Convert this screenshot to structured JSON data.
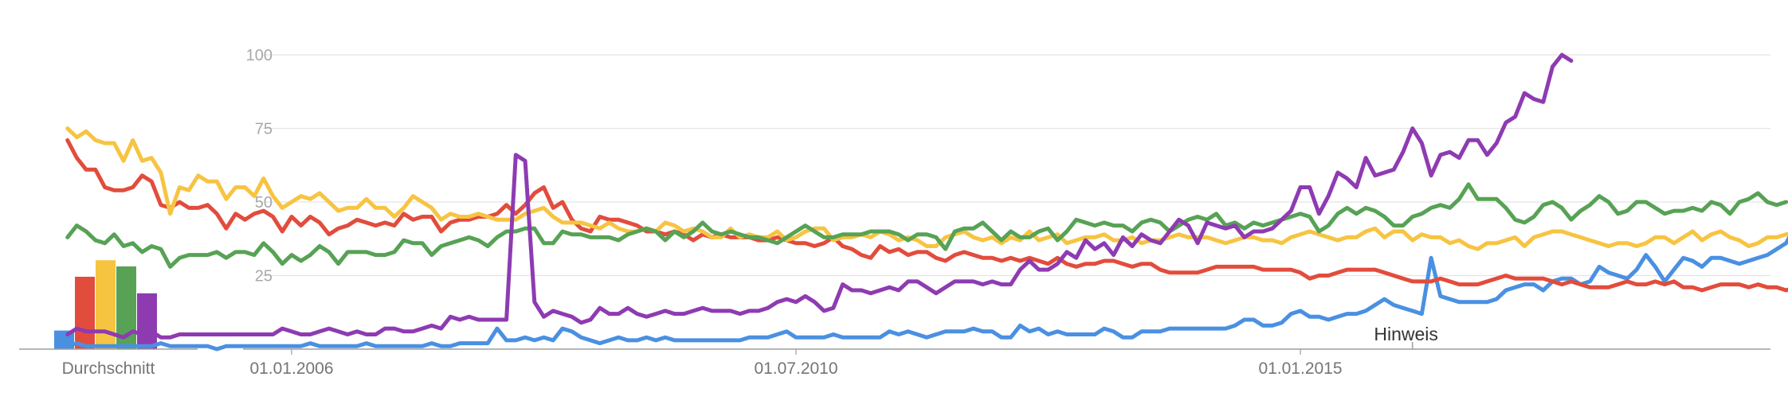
{
  "chart_data": [
    {
      "type": "bar",
      "xlabel": "Durchschnitt",
      "values": [
        9,
        35,
        43,
        40,
        27
      ],
      "colors": [
        "#4a90e2",
        "#e24c3c",
        "#f7c442",
        "#57a255",
        "#8e3bb2"
      ]
    },
    {
      "type": "line",
      "x_start": "2004-01-01",
      "x_step_months": 1,
      "x_tick_labels": [
        "01.01.2006",
        "01.07.2010",
        "01.01.2015"
      ],
      "x_tick_dates": [
        "2006-01-01",
        "2010-07-01",
        "2015-01-01"
      ],
      "y_ticks": [
        25,
        50,
        75,
        100
      ],
      "ylim": [
        0,
        100
      ],
      "grid": true,
      "annotation": {
        "text": "Hinweis",
        "date": "2016-01-01"
      },
      "series": [
        {
          "color": "#4a90e2",
          "values": [
            1,
            2,
            1,
            1,
            1,
            1,
            1,
            1,
            1,
            1,
            2,
            1,
            1,
            1,
            1,
            1,
            0,
            1,
            1,
            1,
            1,
            1,
            1,
            1,
            1,
            1,
            2,
            1,
            1,
            1,
            1,
            1,
            2,
            1,
            1,
            1,
            1,
            1,
            1,
            2,
            1,
            1,
            2,
            2,
            2,
            2,
            7,
            3,
            3,
            4,
            3,
            4,
            3,
            7,
            6,
            4,
            3,
            2,
            3,
            4,
            3,
            3,
            4,
            3,
            4,
            3,
            3,
            3,
            3,
            3,
            3,
            3,
            3,
            4,
            4,
            4,
            5,
            6,
            4,
            4,
            4,
            4,
            5,
            4,
            4,
            4,
            4,
            4,
            6,
            5,
            6,
            5,
            4,
            5,
            6,
            6,
            6,
            7,
            6,
            6,
            4,
            4,
            8,
            6,
            7,
            5,
            6,
            5,
            5,
            5,
            5,
            7,
            6,
            4,
            4,
            6,
            6,
            6,
            7,
            7,
            7,
            7,
            7,
            7,
            7,
            8,
            10,
            10,
            8,
            8,
            9,
            12,
            13,
            11,
            11,
            10,
            11,
            12,
            12,
            13,
            15,
            17,
            15,
            14,
            13,
            12,
            31,
            18,
            17,
            16,
            16,
            16,
            16,
            17,
            20,
            21,
            22,
            22,
            20,
            23,
            24,
            24,
            22,
            23,
            28,
            26,
            25,
            24,
            27,
            32,
            28,
            23,
            27,
            31,
            30,
            28,
            31,
            31,
            30,
            29,
            30,
            31,
            32,
            34,
            36,
            42,
            36,
            30,
            36,
            39,
            39
          ]
        },
        {
          "color": "#e24c3c",
          "values": [
            71,
            65,
            61,
            61,
            55,
            54,
            54,
            55,
            59,
            57,
            49,
            48,
            50,
            48,
            48,
            49,
            46,
            41,
            46,
            44,
            46,
            47,
            45,
            40,
            45,
            42,
            45,
            43,
            39,
            41,
            42,
            44,
            43,
            42,
            43,
            42,
            46,
            44,
            45,
            45,
            40,
            43,
            44,
            44,
            45,
            45,
            46,
            49,
            46,
            49,
            53,
            55,
            48,
            50,
            44,
            41,
            40,
            45,
            44,
            44,
            43,
            42,
            40,
            40,
            39,
            40,
            39,
            37,
            39,
            38,
            39,
            38,
            38,
            38,
            37,
            37,
            38,
            37,
            36,
            36,
            35,
            36,
            38,
            35,
            34,
            32,
            31,
            35,
            33,
            34,
            32,
            33,
            33,
            31,
            30,
            32,
            33,
            32,
            31,
            31,
            30,
            31,
            30,
            31,
            30,
            29,
            31,
            29,
            28,
            29,
            29,
            30,
            30,
            29,
            28,
            29,
            29,
            27,
            26,
            26,
            26,
            26,
            27,
            28,
            28,
            28,
            28,
            28,
            27,
            27,
            27,
            27,
            26,
            24,
            25,
            25,
            26,
            27,
            27,
            27,
            27,
            26,
            25,
            24,
            23,
            23,
            23,
            24,
            23,
            22,
            22,
            22,
            23,
            24,
            25,
            24,
            24,
            24,
            24,
            23,
            22,
            23,
            22,
            21,
            21,
            21,
            22,
            23,
            22,
            22,
            23,
            22,
            23,
            21,
            21,
            20,
            21,
            22,
            22,
            22,
            21,
            22,
            21,
            21,
            20,
            21,
            20,
            21,
            21
          ]
        },
        {
          "color": "#f7c442",
          "values": [
            75,
            72,
            74,
            71,
            70,
            70,
            64,
            71,
            64,
            65,
            60,
            46,
            55,
            54,
            59,
            57,
            57,
            51,
            55,
            55,
            52,
            58,
            52,
            48,
            50,
            52,
            51,
            53,
            50,
            47,
            48,
            48,
            51,
            48,
            48,
            45,
            48,
            52,
            50,
            48,
            44,
            46,
            45,
            45,
            46,
            45,
            44,
            44,
            44,
            46,
            47,
            48,
            45,
            43,
            43,
            43,
            42,
            41,
            43,
            41,
            40,
            40,
            41,
            40,
            43,
            42,
            40,
            41,
            40,
            38,
            38,
            41,
            38,
            39,
            38,
            38,
            40,
            37,
            38,
            40,
            41,
            41,
            37,
            38,
            38,
            39,
            38,
            40,
            39,
            37,
            38,
            37,
            35,
            35,
            38,
            39,
            40,
            38,
            37,
            38,
            36,
            38,
            37,
            40,
            37,
            38,
            39,
            36,
            37,
            38,
            38,
            39,
            37,
            37,
            38,
            36,
            37,
            37,
            38,
            39,
            38,
            38,
            38,
            37,
            36,
            37,
            38,
            38,
            37,
            37,
            36,
            38,
            39,
            40,
            39,
            38,
            37,
            38,
            38,
            40,
            41,
            38,
            40,
            40,
            37,
            39,
            38,
            38,
            36,
            37,
            35,
            34,
            36,
            36,
            37,
            38,
            35,
            38,
            39,
            40,
            40,
            39,
            38,
            37,
            36,
            35,
            36,
            36,
            35,
            36,
            38,
            38,
            36,
            38,
            40,
            37,
            39,
            40,
            38,
            37,
            35,
            36,
            38,
            38,
            39,
            40,
            36,
            38,
            40,
            40,
            39
          ]
        },
        {
          "color": "#57a255",
          "values": [
            38,
            42,
            40,
            37,
            36,
            39,
            35,
            36,
            33,
            35,
            34,
            28,
            31,
            32,
            32,
            32,
            33,
            31,
            33,
            33,
            32,
            36,
            33,
            29,
            32,
            30,
            32,
            35,
            33,
            29,
            33,
            33,
            33,
            32,
            32,
            33,
            37,
            36,
            36,
            32,
            35,
            36,
            37,
            38,
            37,
            35,
            38,
            40,
            40,
            41,
            41,
            36,
            36,
            40,
            39,
            39,
            38,
            38,
            38,
            37,
            39,
            40,
            41,
            40,
            37,
            40,
            38,
            40,
            43,
            40,
            39,
            40,
            39,
            38,
            38,
            37,
            36,
            38,
            40,
            42,
            40,
            38,
            38,
            39,
            39,
            39,
            40,
            40,
            40,
            39,
            37,
            39,
            39,
            38,
            34,
            40,
            41,
            41,
            43,
            40,
            37,
            40,
            38,
            38,
            40,
            41,
            37,
            40,
            44,
            43,
            42,
            43,
            42,
            42,
            40,
            43,
            44,
            43,
            40,
            42,
            44,
            45,
            44,
            46,
            42,
            43,
            41,
            43,
            42,
            43,
            44,
            45,
            46,
            45,
            40,
            42,
            46,
            48,
            46,
            48,
            47,
            45,
            42,
            42,
            45,
            46,
            48,
            49,
            48,
            51,
            56,
            51,
            51,
            51,
            48,
            44,
            43,
            45,
            49,
            50,
            48,
            44,
            47,
            49,
            52,
            50,
            46,
            47,
            50,
            50,
            48,
            46,
            47,
            47,
            48,
            47,
            50,
            49,
            46,
            50,
            51,
            53,
            50,
            49,
            50
          ]
        },
        {
          "color": "#8e3bb2",
          "values": [
            5,
            7,
            6,
            6,
            6,
            5,
            4,
            6,
            5,
            6,
            4,
            4,
            5,
            5,
            5,
            5,
            5,
            5,
            5,
            5,
            5,
            5,
            5,
            7,
            6,
            5,
            5,
            6,
            7,
            6,
            5,
            6,
            5,
            5,
            7,
            7,
            6,
            6,
            7,
            8,
            7,
            11,
            10,
            11,
            10,
            10,
            10,
            10,
            66,
            64,
            16,
            11,
            13,
            12,
            11,
            9,
            10,
            14,
            12,
            12,
            14,
            12,
            11,
            12,
            13,
            12,
            12,
            13,
            14,
            13,
            13,
            13,
            12,
            13,
            13,
            14,
            16,
            17,
            16,
            18,
            16,
            13,
            14,
            22,
            20,
            20,
            19,
            20,
            21,
            20,
            23,
            23,
            21,
            19,
            21,
            23,
            23,
            23,
            22,
            23,
            22,
            22,
            27,
            30,
            27,
            27,
            29,
            33,
            31,
            37,
            34,
            36,
            32,
            38,
            35,
            39,
            37,
            36,
            40,
            44,
            42,
            36,
            43,
            42,
            41,
            42,
            38,
            40,
            40,
            41,
            44,
            47,
            55,
            55,
            46,
            52,
            60,
            58,
            55,
            65,
            59,
            60,
            61,
            67,
            75,
            70,
            59,
            66,
            67,
            65,
            71,
            71,
            66,
            70,
            77,
            79,
            87,
            85,
            84,
            96,
            100,
            98
          ]
        }
      ]
    }
  ]
}
